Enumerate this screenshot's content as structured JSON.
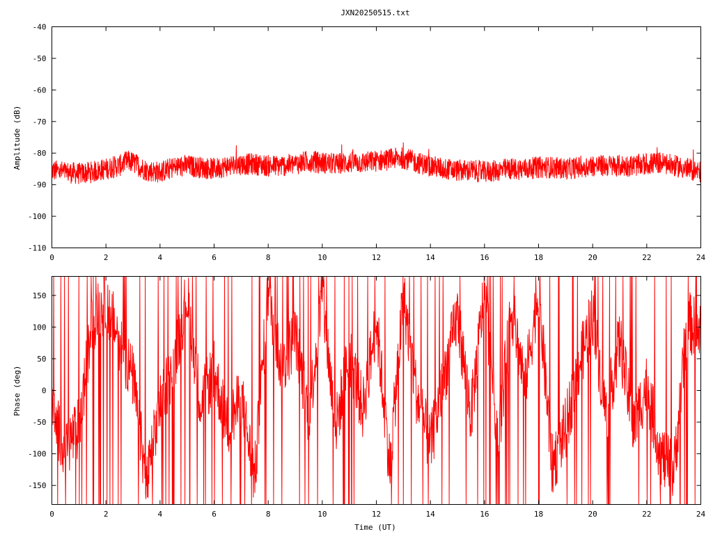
{
  "title": "JXN20250515.txt",
  "colors": {
    "trace": "#ff0000",
    "axes": "#000000",
    "background": "#ffffff"
  },
  "chart_data": [
    {
      "type": "line",
      "ylabel": "Amplitude (dB)",
      "xlabel": "",
      "xlim": [
        0,
        24
      ],
      "ylim": [
        -110,
        -40
      ],
      "xticks": [
        0,
        2,
        4,
        6,
        8,
        10,
        12,
        14,
        16,
        18,
        20,
        22,
        24
      ],
      "yticks": [
        -40,
        -50,
        -60,
        -70,
        -80,
        -90,
        -100,
        -110
      ],
      "xtick_labels": [
        "0",
        "2",
        "4",
        "6",
        "8",
        "10",
        "12",
        "14",
        "16",
        "18",
        "20",
        "22",
        "24"
      ],
      "ytick_labels": [
        "-40",
        "-50",
        "-60",
        "-70",
        "-80",
        "-90",
        "-100",
        "-110"
      ],
      "grid": false,
      "series": [
        {
          "x": [
            0,
            0.5,
            1,
            1.5,
            2,
            2.5,
            2.8,
            3,
            3.5,
            4,
            4.5,
            5,
            5.5,
            6,
            6.5,
            7,
            7.5,
            8,
            8.5,
            9,
            9.5,
            10,
            10.5,
            11,
            11.5,
            12,
            12.5,
            13,
            13.5,
            14,
            14.5,
            15,
            15.5,
            16,
            16.5,
            17,
            17.5,
            18,
            18.5,
            19,
            19.5,
            20,
            20.5,
            21,
            21.5,
            22,
            22.5,
            23,
            23.5,
            24
          ],
          "y": [
            -85.5,
            -86,
            -86.5,
            -86,
            -85,
            -84,
            -82.5,
            -83,
            -85.5,
            -86,
            -84.5,
            -84,
            -84.5,
            -85,
            -84,
            -83.5,
            -83.5,
            -84,
            -84,
            -83.5,
            -82.5,
            -83,
            -83.5,
            -83,
            -83,
            -82.5,
            -82,
            -81.5,
            -83,
            -84,
            -85,
            -85.5,
            -85.5,
            -86,
            -85.5,
            -85,
            -85,
            -84.5,
            -84.5,
            -85,
            -84.5,
            -84,
            -84,
            -84,
            -84,
            -83.5,
            -83,
            -84,
            -85,
            -86
          ],
          "spread": 3.5
        }
      ]
    },
    {
      "type": "line",
      "ylabel": "Phase (deg)",
      "xlabel": "Time (UT)",
      "xlim": [
        0,
        24
      ],
      "ylim": [
        -180,
        180
      ],
      "xticks": [
        0,
        2,
        4,
        6,
        8,
        10,
        12,
        14,
        16,
        18,
        20,
        22,
        24
      ],
      "yticks": [
        150,
        100,
        50,
        0,
        -50,
        -100,
        -150
      ],
      "xtick_labels": [
        "0",
        "2",
        "4",
        "6",
        "8",
        "10",
        "12",
        "14",
        "16",
        "18",
        "20",
        "22",
        "24"
      ],
      "ytick_labels": [
        "150",
        "100",
        "50",
        "0",
        "-50",
        "-100",
        "-150"
      ],
      "grid": false,
      "series": [
        {
          "x": [
            0,
            0.5,
            1,
            1.5,
            2,
            2.5,
            3,
            3.5,
            4,
            4.5,
            5,
            5.5,
            6,
            6.5,
            7,
            7.5,
            8,
            8.5,
            9,
            9.5,
            10,
            10.5,
            11,
            11.5,
            12,
            12.5,
            13,
            13.5,
            14,
            14.5,
            15,
            15.5,
            16,
            16.5,
            17,
            17.5,
            18,
            18.5,
            19,
            19.5,
            20,
            20.5,
            21,
            21.5,
            22,
            22.5,
            23,
            23.5,
            24
          ],
          "y": [
            -40,
            -90,
            -60,
            110,
            140,
            80,
            20,
            -150,
            -20,
            40,
            150,
            -20,
            30,
            -60,
            -10,
            -140,
            160,
            30,
            90,
            -40,
            150,
            -60,
            60,
            -30,
            110,
            -120,
            150,
            -10,
            -90,
            20,
            120,
            -40,
            160,
            -80,
            130,
            10,
            160,
            -120,
            -60,
            40,
            120,
            -40,
            80,
            -60,
            10,
            -100,
            -130,
            110,
            90
          ],
          "spread": 50
        }
      ]
    }
  ]
}
